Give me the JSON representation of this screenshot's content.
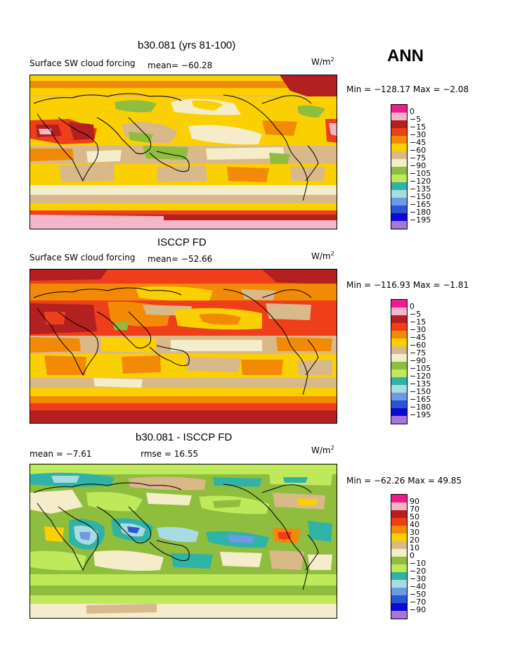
{
  "season": "ANN",
  "unit_base": "W/m",
  "unit_exp": "2",
  "panels": [
    {
      "title": "b30.081 (yrs 81-100)",
      "variable": "Surface SW cloud forcing",
      "mean_text": "mean= −60.28",
      "minmax": "Min = −128.17 Max =  −2.08",
      "levels": [
        "0",
        "−5",
        "−15",
        "−30",
        "−45",
        "−60",
        "−75",
        "−90",
        "−105",
        "−120",
        "−135",
        "−150",
        "−165",
        "−180",
        "−195"
      ],
      "colors": [
        "#ee1c8d",
        "#f5b5c8",
        "#b3201f",
        "#ee3e1a",
        "#f38a05",
        "#fbd000",
        "#d9b88a",
        "#f5ecc9",
        "#8fbd3d",
        "#bde95a",
        "#2fb3a6",
        "#a8dce3",
        "#6e9ae3",
        "#2a55d8",
        "#0a0ad0",
        "#a577d8"
      ]
    },
    {
      "title": "ISCCP FD",
      "variable": "Surface SW cloud forcing",
      "mean_text": "mean= −52.66",
      "minmax": "Min = −116.93 Max =  −1.81",
      "levels": [
        "0",
        "−5",
        "−15",
        "−30",
        "−45",
        "−60",
        "−75",
        "−90",
        "−105",
        "−120",
        "−135",
        "−150",
        "−165",
        "−180",
        "−195"
      ],
      "colors": [
        "#ee1c8d",
        "#f5b5c8",
        "#b3201f",
        "#ee3e1a",
        "#f38a05",
        "#fbd000",
        "#d9b88a",
        "#f5ecc9",
        "#8fbd3d",
        "#bde95a",
        "#2fb3a6",
        "#a8dce3",
        "#6e9ae3",
        "#2a55d8",
        "#0a0ad0",
        "#a577d8"
      ]
    },
    {
      "title": "b30.081 - ISCCP FD",
      "mean_text": "mean =   −7.61",
      "rmse_text": "rmse =  16.55",
      "minmax": "Min = −62.26 Max =  49.85",
      "levels": [
        "90",
        "70",
        "50",
        "40",
        "30",
        "20",
        "10",
        "0",
        "−10",
        "−20",
        "−30",
        "−40",
        "−50",
        "−70",
        "−90"
      ],
      "colors": [
        "#ee1c8d",
        "#f5b5c8",
        "#b3201f",
        "#ee3e1a",
        "#f38a05",
        "#fbd000",
        "#d9b88a",
        "#f5ecc9",
        "#8fbd3d",
        "#bde95a",
        "#2fb3a6",
        "#a8dce3",
        "#6e9ae3",
        "#2a55d8",
        "#0a0ad0",
        "#a577d8"
      ]
    }
  ]
}
